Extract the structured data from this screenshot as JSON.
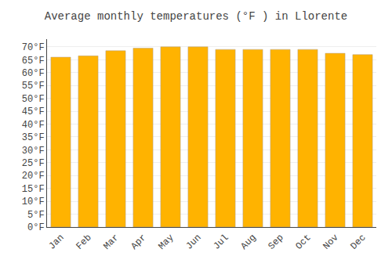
{
  "chart_data": {
    "type": "bar",
    "title": "Average monthly temperatures (°F ) in Llorente",
    "categories": [
      "Jan",
      "Feb",
      "Mar",
      "Apr",
      "May",
      "Jun",
      "Jul",
      "Aug",
      "Sep",
      "Oct",
      "Nov",
      "Dec"
    ],
    "values": [
      66,
      66.5,
      68.5,
      69.5,
      70,
      70,
      69,
      69,
      69,
      69,
      67.5,
      67
    ],
    "color": "#FFB300",
    "ylim": [
      0,
      73
    ],
    "yticks": [
      {
        "value": 0,
        "label": "0°F"
      },
      {
        "value": 5,
        "label": "5°F"
      },
      {
        "value": 10,
        "label": "10°F"
      },
      {
        "value": 15,
        "label": "15°F"
      },
      {
        "value": 20,
        "label": "20°F"
      },
      {
        "value": 25,
        "label": "25°F"
      },
      {
        "value": 30,
        "label": "30°F"
      },
      {
        "value": 35,
        "label": "35°F"
      },
      {
        "value": 40,
        "label": "40°F"
      },
      {
        "value": 45,
        "label": "45°F"
      },
      {
        "value": 50,
        "label": "50°F"
      },
      {
        "value": 55,
        "label": "55°F"
      },
      {
        "value": 60,
        "label": "60°F"
      },
      {
        "value": 65,
        "label": "65°F"
      },
      {
        "value": 70,
        "label": "70°F"
      }
    ],
    "grid": true
  }
}
